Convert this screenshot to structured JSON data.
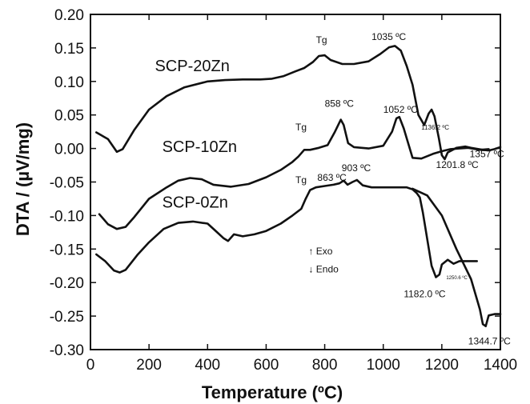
{
  "chart_data": {
    "type": "line",
    "xlabel": "Temperature (ºC)",
    "ylabel": "DTA / (µV/mg)",
    "xlim": [
      0,
      1400
    ],
    "ylim": [
      -0.3,
      0.2
    ],
    "xticks": [
      "0",
      "200",
      "400",
      "600",
      "800",
      "1000",
      "1200",
      "1400"
    ],
    "yticks": [
      "0.20",
      "0.15",
      "0.10",
      "0.05",
      "0.00",
      "-0.05",
      "-0.10",
      "-0.15",
      "-0.20",
      "-0.25",
      "-0.30"
    ],
    "grid": false,
    "series": [
      {
        "name": "SCP-20Zn",
        "points": [
          [
            20,
            0.024
          ],
          [
            60,
            0.014
          ],
          [
            90,
            -0.005
          ],
          [
            110,
            -0.001
          ],
          [
            150,
            0.028
          ],
          [
            200,
            0.058
          ],
          [
            260,
            0.078
          ],
          [
            320,
            0.091
          ],
          [
            400,
            0.1
          ],
          [
            460,
            0.102
          ],
          [
            520,
            0.103
          ],
          [
            580,
            0.103
          ],
          [
            620,
            0.104
          ],
          [
            660,
            0.108
          ],
          [
            700,
            0.115
          ],
          [
            730,
            0.12
          ],
          [
            760,
            0.129
          ],
          [
            780,
            0.138
          ],
          [
            800,
            0.139
          ],
          [
            820,
            0.132
          ],
          [
            860,
            0.126
          ],
          [
            900,
            0.126
          ],
          [
            950,
            0.13
          ],
          [
            990,
            0.141
          ],
          [
            1020,
            0.151
          ],
          [
            1040,
            0.153
          ],
          [
            1060,
            0.146
          ],
          [
            1080,
            0.123
          ],
          [
            1100,
            0.095
          ],
          [
            1120,
            0.05
          ],
          [
            1140,
            0.035
          ],
          [
            1155,
            0.052
          ],
          [
            1165,
            0.058
          ],
          [
            1175,
            0.048
          ],
          [
            1190,
            0.015
          ],
          [
            1200,
            -0.01
          ],
          [
            1210,
            -0.016
          ],
          [
            1220,
            -0.006
          ],
          [
            1250,
            0.001
          ],
          [
            1280,
            0.003
          ],
          [
            1300,
            0.001
          ],
          [
            1340,
            -0.002
          ],
          [
            1360,
            -0.003
          ],
          [
            1380,
            -0.001
          ],
          [
            1400,
            0.002
          ]
        ]
      },
      {
        "name": "SCP-10Zn",
        "points": [
          [
            30,
            -0.098
          ],
          [
            60,
            -0.113
          ],
          [
            90,
            -0.12
          ],
          [
            120,
            -0.117
          ],
          [
            150,
            -0.102
          ],
          [
            200,
            -0.075
          ],
          [
            260,
            -0.058
          ],
          [
            300,
            -0.048
          ],
          [
            340,
            -0.044
          ],
          [
            380,
            -0.046
          ],
          [
            420,
            -0.054
          ],
          [
            480,
            -0.057
          ],
          [
            540,
            -0.053
          ],
          [
            600,
            -0.043
          ],
          [
            650,
            -0.032
          ],
          [
            690,
            -0.02
          ],
          [
            710,
            -0.012
          ],
          [
            730,
            -0.002
          ],
          [
            750,
            -0.002
          ],
          [
            780,
            0.001
          ],
          [
            810,
            0.005
          ],
          [
            835,
            0.025
          ],
          [
            855,
            0.043
          ],
          [
            865,
            0.035
          ],
          [
            880,
            0.008
          ],
          [
            900,
            0.002
          ],
          [
            950,
            0.0
          ],
          [
            1000,
            0.004
          ],
          [
            1030,
            0.025
          ],
          [
            1045,
            0.045
          ],
          [
            1055,
            0.047
          ],
          [
            1070,
            0.03
          ],
          [
            1085,
            0.008
          ],
          [
            1100,
            -0.014
          ],
          [
            1130,
            -0.015
          ],
          [
            1170,
            -0.008
          ],
          [
            1200,
            -0.004
          ],
          [
            1230,
            -0.001
          ],
          [
            1260,
            0.0
          ],
          [
            1290,
            0.001
          ],
          [
            1330,
            -0.002
          ],
          [
            1360,
            -0.001
          ]
        ]
      },
      {
        "name": "SCP-0Zn",
        "points": [
          [
            20,
            -0.158
          ],
          [
            50,
            -0.168
          ],
          [
            80,
            -0.182
          ],
          [
            100,
            -0.185
          ],
          [
            120,
            -0.181
          ],
          [
            160,
            -0.159
          ],
          [
            200,
            -0.14
          ],
          [
            250,
            -0.12
          ],
          [
            300,
            -0.111
          ],
          [
            350,
            -0.109
          ],
          [
            400,
            -0.112
          ],
          [
            430,
            -0.124
          ],
          [
            455,
            -0.134
          ],
          [
            470,
            -0.138
          ],
          [
            490,
            -0.128
          ],
          [
            520,
            -0.131
          ],
          [
            560,
            -0.128
          ],
          [
            600,
            -0.123
          ],
          [
            650,
            -0.112
          ],
          [
            690,
            -0.1
          ],
          [
            720,
            -0.09
          ],
          [
            735,
            -0.075
          ],
          [
            750,
            -0.062
          ],
          [
            770,
            -0.058
          ],
          [
            800,
            -0.056
          ],
          [
            830,
            -0.054
          ],
          [
            850,
            -0.052
          ],
          [
            865,
            -0.048
          ],
          [
            878,
            -0.054
          ],
          [
            895,
            -0.05
          ],
          [
            910,
            -0.047
          ],
          [
            930,
            -0.055
          ],
          [
            960,
            -0.058
          ],
          [
            1000,
            -0.058
          ],
          [
            1050,
            -0.058
          ],
          [
            1080,
            -0.058
          ],
          [
            1100,
            -0.061
          ],
          [
            1115,
            -0.067
          ],
          [
            1125,
            -0.073
          ],
          [
            1135,
            -0.095
          ],
          [
            1150,
            -0.135
          ],
          [
            1165,
            -0.175
          ],
          [
            1180,
            -0.192
          ],
          [
            1192,
            -0.188
          ],
          [
            1200,
            -0.173
          ],
          [
            1220,
            -0.166
          ],
          [
            1240,
            -0.172
          ],
          [
            1260,
            -0.168
          ],
          [
            1290,
            -0.168
          ],
          [
            1320,
            -0.168
          ]
        ],
        "tail": [
          [
            1100,
            -0.06
          ],
          [
            1150,
            -0.07
          ],
          [
            1200,
            -0.1
          ],
          [
            1250,
            -0.15
          ],
          [
            1300,
            -0.195
          ],
          [
            1330,
            -0.24
          ],
          [
            1340,
            -0.262
          ],
          [
            1350,
            -0.265
          ],
          [
            1360,
            -0.249
          ],
          [
            1380,
            -0.247
          ],
          [
            1400,
            -0.247
          ]
        ]
      }
    ],
    "series_labels": [
      {
        "text": "SCP-20Zn",
        "x": 220,
        "y": 0.115
      },
      {
        "text": "SCP-10Zn",
        "x": 245,
        "y": -0.005
      },
      {
        "text": "SCP-0Zn",
        "x": 245,
        "y": -0.088
      }
    ],
    "annotations": [
      {
        "text": "Tg",
        "x": 770,
        "y": 0.157,
        "size": "normal"
      },
      {
        "text": "1035 ºC",
        "x": 960,
        "y": 0.162,
        "size": "normal"
      },
      {
        "text": "858 ºC",
        "x": 800,
        "y": 0.062,
        "size": "normal"
      },
      {
        "text": "1052 ºC",
        "x": 1000,
        "y": 0.053,
        "size": "normal"
      },
      {
        "text": "1136.2 ºC",
        "x": 1130,
        "y": 0.028,
        "size": "small"
      },
      {
        "text": "Tg",
        "x": 700,
        "y": 0.027,
        "size": "normal"
      },
      {
        "text": "1357 ºC",
        "x": 1295,
        "y": -0.013,
        "size": "normal"
      },
      {
        "text": "1201.8 ºC",
        "x": 1180,
        "y": -0.029,
        "size": "normal"
      },
      {
        "text": "903 ºC",
        "x": 858,
        "y": -0.034,
        "size": "normal"
      },
      {
        "text": "863 ºC",
        "x": 775,
        "y": -0.048,
        "size": "normal"
      },
      {
        "text": "Tg",
        "x": 700,
        "y": -0.052,
        "size": "normal"
      },
      {
        "text": "1250.6 ºC",
        "x": 1215,
        "y": -0.195,
        "size": "tiny"
      },
      {
        "text": "1182.0 ºC",
        "x": 1070,
        "y": -0.222,
        "size": "normal"
      },
      {
        "text": "1344.7 ºC",
        "x": 1290,
        "y": -0.292,
        "size": "normal"
      }
    ],
    "legend": {
      "exo": "↑ Exo",
      "endo": "↓ Endo",
      "position": "lower-middle"
    }
  }
}
